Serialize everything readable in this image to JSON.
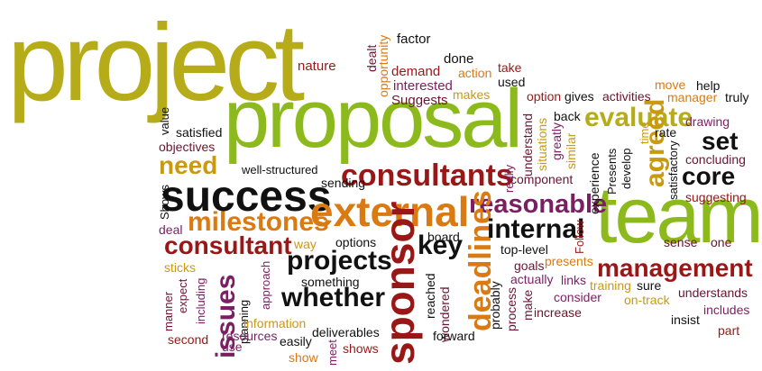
{
  "palette": {
    "olive": "#b6ac19",
    "green": "#8cba1d",
    "red": "#9a1717",
    "orange": "#d97a12",
    "maroon": "#6b1530",
    "purple": "#7a1f63",
    "black": "#111111",
    "gold": "#c99a10"
  },
  "words": [
    {
      "text": "project",
      "color": "olive"
    },
    {
      "text": "proposal",
      "color": "green"
    },
    {
      "text": "team",
      "color": "green"
    },
    {
      "text": "success",
      "color": "black"
    },
    {
      "text": "external",
      "color": "orange"
    },
    {
      "text": "sponsor",
      "color": "red"
    },
    {
      "text": "consultants",
      "color": "red"
    },
    {
      "text": "milestones",
      "color": "orange"
    },
    {
      "text": "consultant",
      "color": "red"
    },
    {
      "text": "reasonable",
      "color": "purple"
    },
    {
      "text": "evaluate",
      "color": "olive"
    },
    {
      "text": "management",
      "color": "red"
    },
    {
      "text": "deadlines",
      "color": "orange"
    },
    {
      "text": "projects",
      "color": "black"
    },
    {
      "text": "whether",
      "color": "black"
    },
    {
      "text": "internal",
      "color": "black"
    },
    {
      "text": "issues",
      "color": "purple"
    },
    {
      "text": "key",
      "color": "black"
    },
    {
      "text": "need",
      "color": "gold"
    },
    {
      "text": "agreed",
      "color": "gold"
    },
    {
      "text": "core",
      "color": "black"
    },
    {
      "text": "set",
      "color": "black"
    },
    {
      "text": "factor",
      "color": "black"
    },
    {
      "text": "done",
      "color": "black"
    },
    {
      "text": "nature",
      "color": "red"
    },
    {
      "text": "dealt",
      "color": "maroon"
    },
    {
      "text": "opportunity",
      "color": "orange"
    },
    {
      "text": "demand",
      "color": "red"
    },
    {
      "text": "interested",
      "color": "purple"
    },
    {
      "text": "action",
      "color": "orange"
    },
    {
      "text": "take",
      "color": "red"
    },
    {
      "text": "used",
      "color": "black"
    },
    {
      "text": "Suggests",
      "color": "maroon"
    },
    {
      "text": "makes",
      "color": "gold"
    },
    {
      "text": "option",
      "color": "red"
    },
    {
      "text": "gives",
      "color": "black"
    },
    {
      "text": "activities",
      "color": "maroon"
    },
    {
      "text": "move",
      "color": "orange"
    },
    {
      "text": "help",
      "color": "black"
    },
    {
      "text": "manager",
      "color": "orange"
    },
    {
      "text": "truly",
      "color": "black"
    },
    {
      "text": "value",
      "color": "black"
    },
    {
      "text": "satisfied",
      "color": "black"
    },
    {
      "text": "objectives",
      "color": "maroon"
    },
    {
      "text": "back",
      "color": "black"
    },
    {
      "text": "understand",
      "color": "maroon"
    },
    {
      "text": "situations",
      "color": "gold"
    },
    {
      "text": "greatly",
      "color": "purple"
    },
    {
      "text": "similar",
      "color": "gold"
    },
    {
      "text": "experience",
      "color": "black"
    },
    {
      "text": "time",
      "color": "gold"
    },
    {
      "text": "rate",
      "color": "black"
    },
    {
      "text": "drawing",
      "color": "purple"
    },
    {
      "text": "concluding",
      "color": "maroon"
    },
    {
      "text": "well-structured",
      "color": "black"
    },
    {
      "text": "sending",
      "color": "black"
    },
    {
      "text": "Shows",
      "color": "black"
    },
    {
      "text": "really",
      "color": "purple"
    },
    {
      "text": "component",
      "color": "maroon"
    },
    {
      "text": "Presents",
      "color": "black"
    },
    {
      "text": "develop",
      "color": "black"
    },
    {
      "text": "satisfactory",
      "color": "black"
    },
    {
      "text": "suggesting",
      "color": "red"
    },
    {
      "text": "deal",
      "color": "purple"
    },
    {
      "text": "way",
      "color": "gold"
    },
    {
      "text": "options",
      "color": "black"
    },
    {
      "text": "board",
      "color": "black"
    },
    {
      "text": "reached",
      "color": "black"
    },
    {
      "text": "top-level",
      "color": "black"
    },
    {
      "text": "Follow",
      "color": "red"
    },
    {
      "text": "sense",
      "color": "maroon"
    },
    {
      "text": "one",
      "color": "maroon"
    },
    {
      "text": "sticks",
      "color": "gold"
    },
    {
      "text": "expect",
      "color": "maroon"
    },
    {
      "text": "approach",
      "color": "purple"
    },
    {
      "text": "something",
      "color": "black"
    },
    {
      "text": "goals",
      "color": "maroon"
    },
    {
      "text": "presents",
      "color": "orange"
    },
    {
      "text": "links",
      "color": "purple"
    },
    {
      "text": "sure",
      "color": "black"
    },
    {
      "text": "manner",
      "color": "maroon"
    },
    {
      "text": "including",
      "color": "purple"
    },
    {
      "text": "planning",
      "color": "black"
    },
    {
      "text": "wondered",
      "color": "maroon"
    },
    {
      "text": "probably",
      "color": "black"
    },
    {
      "text": "actually",
      "color": "purple"
    },
    {
      "text": "training",
      "color": "gold"
    },
    {
      "text": "process",
      "color": "maroon"
    },
    {
      "text": "make",
      "color": "maroon"
    },
    {
      "text": "consider",
      "color": "purple"
    },
    {
      "text": "on-track",
      "color": "gold"
    },
    {
      "text": "understands",
      "color": "maroon"
    },
    {
      "text": "information",
      "color": "gold"
    },
    {
      "text": "deliverables",
      "color": "black"
    },
    {
      "text": "increase",
      "color": "maroon"
    },
    {
      "text": "includes",
      "color": "purple"
    },
    {
      "text": "insist",
      "color": "black"
    },
    {
      "text": "second",
      "color": "red"
    },
    {
      "text": "resources",
      "color": "purple"
    },
    {
      "text": "use",
      "color": "purple"
    },
    {
      "text": "easily",
      "color": "black"
    },
    {
      "text": "meet",
      "color": "purple"
    },
    {
      "text": "shows",
      "color": "red"
    },
    {
      "text": "forward",
      "color": "black"
    },
    {
      "text": "show",
      "color": "orange"
    },
    {
      "text": "part",
      "color": "red"
    }
  ]
}
